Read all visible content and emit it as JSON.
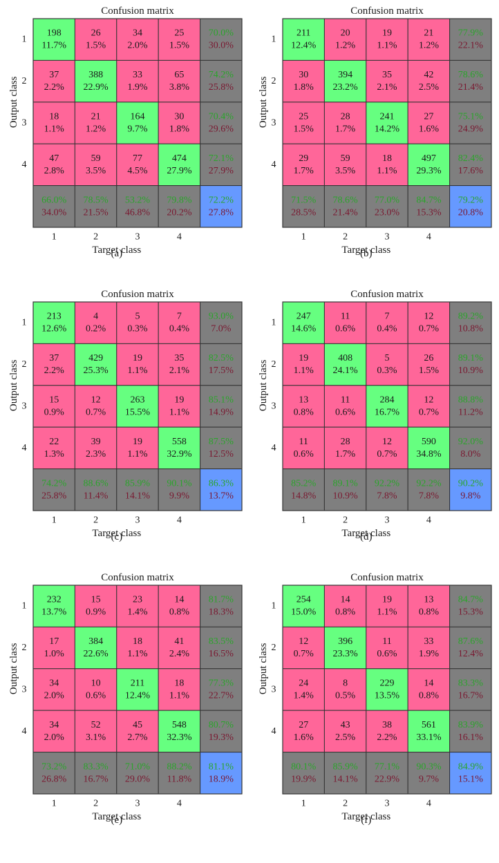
{
  "colors": {
    "correct": "#66ff80",
    "wrong": "#ff6699",
    "summary": "#7f7f7f",
    "total": "#6699ff",
    "pct_good": "#2aa52a",
    "pct_bad": "#7a1830",
    "text": "#1a1a1a",
    "grid": "#333333"
  },
  "chart_data": [
    {
      "type": "heatmap",
      "panel_label": "(a)",
      "title": "Confusion matrix",
      "xlabel": "Target class",
      "ylabel": "Output class",
      "row_labels": [
        "1",
        "2",
        "3",
        "4"
      ],
      "col_labels": [
        "1",
        "2",
        "3",
        "4"
      ],
      "counts": [
        [
          198,
          26,
          34,
          25
        ],
        [
          37,
          388,
          33,
          65
        ],
        [
          18,
          21,
          164,
          30
        ],
        [
          47,
          59,
          77,
          474
        ]
      ],
      "percents": [
        [
          "11.7%",
          "1.5%",
          "2.0%",
          "1.5%"
        ],
        [
          "2.2%",
          "22.9%",
          "1.9%",
          "3.8%"
        ],
        [
          "1.1%",
          "1.2%",
          "9.7%",
          "1.8%"
        ],
        [
          "2.8%",
          "3.5%",
          "4.5%",
          "27.9%"
        ]
      ],
      "row_summary": [
        [
          "70.0%",
          "30.0%"
        ],
        [
          "74.2%",
          "25.8%"
        ],
        [
          "70.4%",
          "29.6%"
        ],
        [
          "72.1%",
          "27.9%"
        ]
      ],
      "col_summary": [
        [
          "66.0%",
          "34.0%"
        ],
        [
          "78.5%",
          "21.5%"
        ],
        [
          "53.2%",
          "46.8%"
        ],
        [
          "79.8%",
          "20.2%"
        ]
      ],
      "total": [
        "72.2%",
        "27.8%"
      ]
    },
    {
      "type": "heatmap",
      "panel_label": "(b)",
      "title": "Confusion matrix",
      "xlabel": "Target class",
      "ylabel": "Output class",
      "row_labels": [
        "1",
        "2",
        "3",
        "4"
      ],
      "col_labels": [
        "1",
        "2",
        "3",
        "4"
      ],
      "counts": [
        [
          211,
          20,
          19,
          21
        ],
        [
          30,
          394,
          35,
          42
        ],
        [
          25,
          28,
          241,
          27
        ],
        [
          29,
          59,
          18,
          497
        ]
      ],
      "percents": [
        [
          "12.4%",
          "1.2%",
          "1.1%",
          "1.2%"
        ],
        [
          "1.8%",
          "23.2%",
          "2.1%",
          "2.5%"
        ],
        [
          "1.5%",
          "1.7%",
          "14.2%",
          "1.6%"
        ],
        [
          "1.7%",
          "3.5%",
          "1.1%",
          "29.3%"
        ]
      ],
      "row_summary": [
        [
          "77.9%",
          "22.1%"
        ],
        [
          "78.6%",
          "21.4%"
        ],
        [
          "75.1%",
          "24.9%"
        ],
        [
          "82.4%",
          "17.6%"
        ]
      ],
      "col_summary": [
        [
          "71.5%",
          "28.5%"
        ],
        [
          "78.6%",
          "21.4%"
        ],
        [
          "77.0%",
          "23.0%"
        ],
        [
          "84.7%",
          "15.3%"
        ]
      ],
      "total": [
        "79.2%",
        "20.8%"
      ]
    },
    {
      "type": "heatmap",
      "panel_label": "(c)",
      "title": "Confusion matrix",
      "xlabel": "Target class",
      "ylabel": "Output class",
      "row_labels": [
        "1",
        "2",
        "3",
        "4"
      ],
      "col_labels": [
        "1",
        "2",
        "3",
        "4"
      ],
      "counts": [
        [
          213,
          4,
          5,
          7
        ],
        [
          37,
          429,
          19,
          35
        ],
        [
          15,
          12,
          263,
          19
        ],
        [
          22,
          39,
          19,
          558
        ]
      ],
      "percents": [
        [
          "12.6%",
          "0.2%",
          "0.3%",
          "0.4%"
        ],
        [
          "2.2%",
          "25.3%",
          "1.1%",
          "2.1%"
        ],
        [
          "0.9%",
          "0.7%",
          "15.5%",
          "1.1%"
        ],
        [
          "1.3%",
          "2.3%",
          "1.1%",
          "32.9%"
        ]
      ],
      "row_summary": [
        [
          "93.0%",
          "7.0%"
        ],
        [
          "82.5%",
          "17.5%"
        ],
        [
          "85.1%",
          "14.9%"
        ],
        [
          "87.5%",
          "12.5%"
        ]
      ],
      "col_summary": [
        [
          "74.2%",
          "25.8%"
        ],
        [
          "88.6%",
          "11.4%"
        ],
        [
          "85.9%",
          "14.1%"
        ],
        [
          "90.1%",
          "9.9%"
        ]
      ],
      "total": [
        "86.3%",
        "13.7%"
      ]
    },
    {
      "type": "heatmap",
      "panel_label": "(d)",
      "title": "Confusion matrix",
      "xlabel": "Target class",
      "ylabel": "Output class",
      "row_labels": [
        "1",
        "2",
        "3",
        "4"
      ],
      "col_labels": [
        "1",
        "2",
        "3",
        "4"
      ],
      "counts": [
        [
          247,
          11,
          7,
          12
        ],
        [
          19,
          408,
          5,
          26
        ],
        [
          13,
          11,
          284,
          12
        ],
        [
          11,
          28,
          12,
          590
        ]
      ],
      "percents": [
        [
          "14.6%",
          "0.6%",
          "0.4%",
          "0.7%"
        ],
        [
          "1.1%",
          "24.1%",
          "0.3%",
          "1.5%"
        ],
        [
          "0.8%",
          "0.6%",
          "16.7%",
          "0.7%"
        ],
        [
          "0.6%",
          "1.7%",
          "0.7%",
          "34.8%"
        ]
      ],
      "row_summary": [
        [
          "89.2%",
          "10.8%"
        ],
        [
          "89.1%",
          "10.9%"
        ],
        [
          "88.8%",
          "11.2%"
        ],
        [
          "92.0%",
          "8.0%"
        ]
      ],
      "col_summary": [
        [
          "85.2%",
          "14.8%"
        ],
        [
          "89.1%",
          "10.9%"
        ],
        [
          "92.2%",
          "7.8%"
        ],
        [
          "92.2%",
          "7.8%"
        ]
      ],
      "total": [
        "90.2%",
        "9.8%"
      ]
    },
    {
      "type": "heatmap",
      "panel_label": "(e)",
      "title": "Confusion matrix",
      "xlabel": "Target class",
      "ylabel": "Output class",
      "row_labels": [
        "1",
        "2",
        "3",
        "4"
      ],
      "col_labels": [
        "1",
        "2",
        "3",
        "4"
      ],
      "counts": [
        [
          232,
          15,
          23,
          14
        ],
        [
          17,
          384,
          18,
          41
        ],
        [
          34,
          10,
          211,
          18
        ],
        [
          34,
          52,
          45,
          548
        ]
      ],
      "percents": [
        [
          "13.7%",
          "0.9%",
          "1.4%",
          "0.8%"
        ],
        [
          "1.0%",
          "22.6%",
          "1.1%",
          "2.4%"
        ],
        [
          "2.0%",
          "0.6%",
          "12.4%",
          "1.1%"
        ],
        [
          "2.0%",
          "3.1%",
          "2.7%",
          "32.3%"
        ]
      ],
      "row_summary": [
        [
          "81.7%",
          "18.3%"
        ],
        [
          "83.5%",
          "16.5%"
        ],
        [
          "77.3%",
          "22.7%"
        ],
        [
          "80.7%",
          "19.3%"
        ]
      ],
      "col_summary": [
        [
          "73.2%",
          "26.8%"
        ],
        [
          "83.3%",
          "16.7%"
        ],
        [
          "71.0%",
          "29.0%"
        ],
        [
          "88.2%",
          "11.8%"
        ]
      ],
      "total": [
        "81.1%",
        "18.9%"
      ]
    },
    {
      "type": "heatmap",
      "panel_label": "(f)",
      "title": "Confusion matrix",
      "xlabel": "Target class",
      "ylabel": "Output class",
      "row_labels": [
        "1",
        "2",
        "3",
        "4"
      ],
      "col_labels": [
        "1",
        "2",
        "3",
        "4"
      ],
      "counts": [
        [
          254,
          14,
          19,
          13
        ],
        [
          12,
          396,
          11,
          33
        ],
        [
          24,
          8,
          229,
          14
        ],
        [
          27,
          43,
          38,
          561
        ]
      ],
      "percents": [
        [
          "15.0%",
          "0.8%",
          "1.1%",
          "0.8%"
        ],
        [
          "0.7%",
          "23.3%",
          "0.6%",
          "1.9%"
        ],
        [
          "1.4%",
          "0.5%",
          "13.5%",
          "0.8%"
        ],
        [
          "1.6%",
          "2.5%",
          "2.2%",
          "33.1%"
        ]
      ],
      "row_summary": [
        [
          "84.7%",
          "15.3%"
        ],
        [
          "87.6%",
          "12.4%"
        ],
        [
          "83.3%",
          "16.7%"
        ],
        [
          "83.9%",
          "16.1%"
        ]
      ],
      "col_summary": [
        [
          "80.1%",
          "19.9%"
        ],
        [
          "85.9%",
          "14.1%"
        ],
        [
          "77.1%",
          "22.9%"
        ],
        [
          "90.3%",
          "9.7%"
        ]
      ],
      "total": [
        "84.9%",
        "15.1%"
      ]
    }
  ]
}
